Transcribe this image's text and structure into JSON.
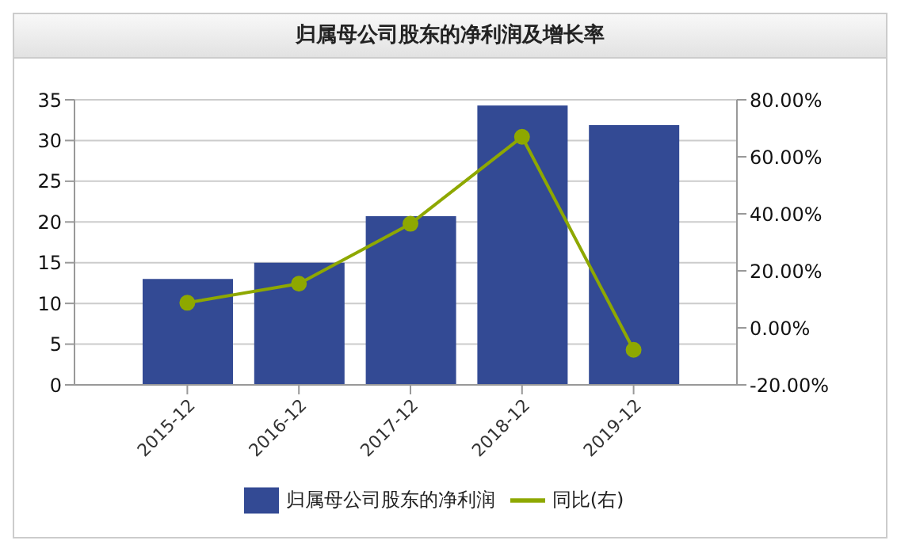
{
  "chart_data": {
    "type": "bar",
    "title": "归属母公司股东的净利润及增长率",
    "categories": [
      "2015-12",
      "2016-12",
      "2017-12",
      "2018-12",
      "2019-12"
    ],
    "series": [
      {
        "name": "归属母公司股东的净利润",
        "color": "#334a94",
        "values": [
          13,
          15,
          20.7,
          34.3,
          31.9
        ]
      },
      {
        "name": "同比(右)",
        "type": "line",
        "axis": "y2",
        "color": "#8ea800",
        "values": [
          8.8,
          15.5,
          36.5,
          67,
          -7.7
        ]
      }
    ],
    "ylim": [
      0,
      35
    ],
    "yticks": [
      0,
      5,
      10,
      15,
      20,
      25,
      30,
      35
    ],
    "y2lim": [
      -20,
      80
    ],
    "y2ticks": [
      {
        "value": -20,
        "label": "-20.00%"
      },
      {
        "value": 0,
        "label": "0.00%"
      },
      {
        "value": 20,
        "label": "20.00%"
      },
      {
        "value": 40,
        "label": "40.00%"
      },
      {
        "value": 60,
        "label": "60.00%"
      },
      {
        "value": 80,
        "label": "80.00%"
      }
    ],
    "grid": "y",
    "legend": "bottom",
    "marker": "circle",
    "line_style": "solid"
  }
}
